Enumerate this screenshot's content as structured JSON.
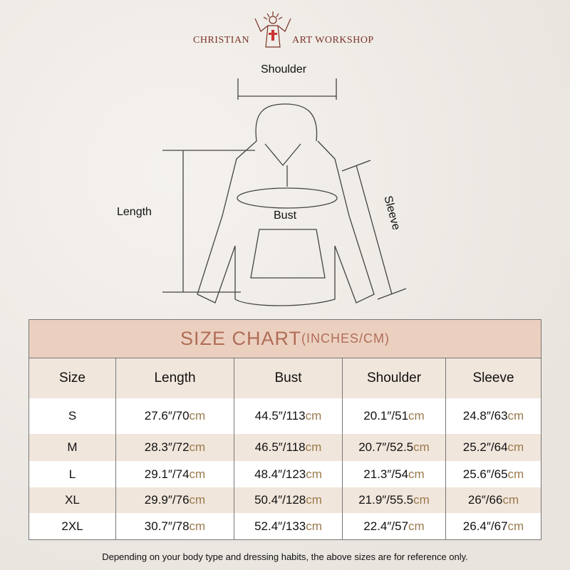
{
  "brand": {
    "left": "CHRISTIAN",
    "right": "ART WORKSHOP"
  },
  "diagram": {
    "shoulder": "Shoulder",
    "length": "Length",
    "bust": "Bust",
    "sleeve": "Sleeve"
  },
  "table": {
    "title": "SIZE CHART",
    "title_units": "(INCHES/CM)",
    "headers": [
      "Size",
      "Length",
      "Bust",
      "Shoulder",
      "Sleeve"
    ],
    "rows": [
      {
        "size": "S",
        "cells": [
          [
            "27.6″/70",
            "cm"
          ],
          [
            "44.5″/113",
            "cm"
          ],
          [
            "20.1″/51",
            "cm"
          ],
          [
            "24.8″/63",
            "cm"
          ]
        ]
      },
      {
        "size": "M",
        "cells": [
          [
            "28.3″/72",
            "cm"
          ],
          [
            "46.5″/118",
            "cm"
          ],
          [
            "20.7″/52.5",
            "cm"
          ],
          [
            "25.2″/64",
            "cm"
          ]
        ]
      },
      {
        "size": "L",
        "cells": [
          [
            "29.1″/74",
            "cm"
          ],
          [
            "48.4″/123",
            "cm"
          ],
          [
            "21.3″/54",
            "cm"
          ],
          [
            "25.6″/65",
            "cm"
          ]
        ]
      },
      {
        "size": "XL",
        "cells": [
          [
            "29.9″/76",
            "cm"
          ],
          [
            "50.4″/128",
            "cm"
          ],
          [
            "21.9″/55.5",
            "cm"
          ],
          [
            "26″/66",
            "cm"
          ]
        ]
      },
      {
        "size": "2XL",
        "cells": [
          [
            "30.7″/78",
            "cm"
          ],
          [
            "52.4″/133",
            "cm"
          ],
          [
            "22.4″/57",
            "cm"
          ],
          [
            "26.4″/67",
            "cm"
          ]
        ]
      }
    ]
  },
  "note": "Depending on your body type and dressing habits, the above sizes are for reference only.",
  "colors": {
    "title_bg": "#ebd0c0",
    "title_text": "#b06d57",
    "cm_text": "#9b7a4c",
    "brand": "#7a3328"
  }
}
